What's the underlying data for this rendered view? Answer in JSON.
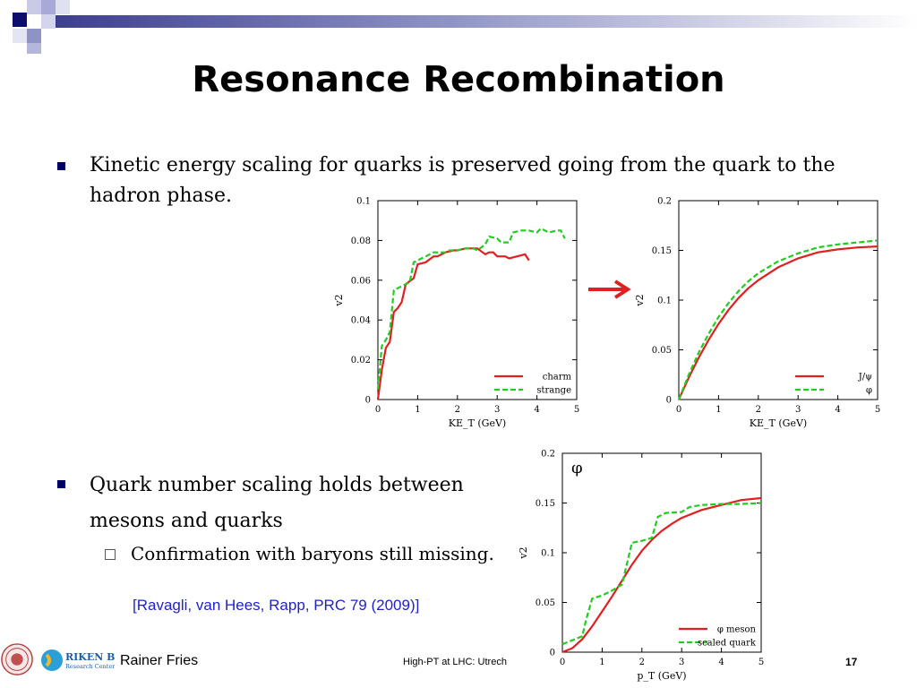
{
  "slide": {
    "title": "Resonance Recombination",
    "bullets": [
      {
        "line1": "Kinetic energy scaling for quarks is preserved going from the quark to the",
        "line2": "hadron phase."
      },
      {
        "line1": "Quark number scaling holds between",
        "line2": "mesons and quarks"
      }
    ],
    "sub_bullet": "Confirmation with baryons still missing.",
    "citation": "[Ravagli, van Hees, Rapp, PRC 79 (2009)]",
    "footer": {
      "author": "Rainer Fries",
      "conference": "High-PT at LHC: Utrech",
      "page": "17",
      "logo_text_1": "RIKEN BNL",
      "logo_text_2": "Research Center"
    },
    "arrow_color": "#e02020",
    "accent_color": "#000066"
  },
  "chart_data": [
    {
      "type": "line",
      "xlabel": "KE_T (GeV)",
      "ylabel": "v2",
      "xlim": [
        0,
        5
      ],
      "ylim": [
        0,
        0.1
      ],
      "xticks": [
        "0",
        "1",
        "2",
        "3",
        "4",
        "5"
      ],
      "yticks": [
        "0",
        "0.02",
        "0.04",
        "0.06",
        "0.08",
        "0.1"
      ],
      "legend_position": "bottom-right",
      "series": [
        {
          "name": "charm",
          "color": "#e02020",
          "dash": false,
          "x": [
            0,
            0.1,
            0.2,
            0.3,
            0.4,
            0.5,
            0.6,
            0.7,
            0.9,
            1.0,
            1.2,
            1.4,
            1.5,
            1.7,
            1.9,
            2.0,
            2.2,
            2.3,
            2.5,
            2.7,
            2.8,
            2.9,
            3.0,
            3.2,
            3.3,
            3.5,
            3.7,
            3.8
          ],
          "y": [
            0.0,
            0.015,
            0.026,
            0.029,
            0.044,
            0.046,
            0.049,
            0.058,
            0.061,
            0.068,
            0.069,
            0.072,
            0.072,
            0.074,
            0.075,
            0.075,
            0.076,
            0.076,
            0.076,
            0.073,
            0.074,
            0.074,
            0.072,
            0.072,
            0.071,
            0.072,
            0.073,
            0.07
          ]
        },
        {
          "name": "strange",
          "color": "#22cc22",
          "dash": true,
          "x": [
            0,
            0.1,
            0.2,
            0.3,
            0.4,
            0.5,
            0.6,
            0.8,
            0.9,
            1.1,
            1.2,
            1.4,
            1.5,
            1.7,
            1.8,
            2.0,
            2.2,
            2.4,
            2.5,
            2.7,
            2.8,
            3.0,
            3.1,
            3.3,
            3.4,
            3.6,
            3.8,
            4.0,
            4.1,
            4.3,
            4.5,
            4.6,
            4.7
          ],
          "y": [
            0.005,
            0.027,
            0.03,
            0.034,
            0.055,
            0.056,
            0.057,
            0.059,
            0.069,
            0.071,
            0.072,
            0.074,
            0.074,
            0.074,
            0.075,
            0.075,
            0.076,
            0.076,
            0.075,
            0.078,
            0.082,
            0.081,
            0.079,
            0.079,
            0.084,
            0.085,
            0.085,
            0.084,
            0.086,
            0.084,
            0.085,
            0.085,
            0.081
          ]
        }
      ]
    },
    {
      "type": "line",
      "xlabel": "KE_T (GeV)",
      "ylabel": "v2",
      "xlim": [
        0,
        5
      ],
      "ylim": [
        0,
        0.2
      ],
      "xticks": [
        "0",
        "1",
        "2",
        "3",
        "4",
        "5"
      ],
      "yticks": [
        "0",
        "0.05",
        "0.1",
        "0.15",
        "0.2"
      ],
      "legend_position": "bottom-right",
      "series": [
        {
          "name": "J/ψ",
          "color": "#e02020",
          "dash": false,
          "x": [
            0,
            0.25,
            0.5,
            0.75,
            1.0,
            1.25,
            1.5,
            1.75,
            2.0,
            2.5,
            3.0,
            3.5,
            4.0,
            4.5,
            5.0
          ],
          "y": [
            0,
            0.022,
            0.042,
            0.06,
            0.076,
            0.09,
            0.102,
            0.112,
            0.12,
            0.133,
            0.142,
            0.148,
            0.151,
            0.153,
            0.154
          ]
        },
        {
          "name": "φ",
          "color": "#22cc22",
          "dash": true,
          "x": [
            0,
            0.25,
            0.5,
            0.75,
            1.0,
            1.25,
            1.5,
            1.75,
            2.0,
            2.5,
            3.0,
            3.5,
            4.0,
            4.5,
            5.0
          ],
          "y": [
            0,
            0.025,
            0.047,
            0.066,
            0.083,
            0.097,
            0.109,
            0.119,
            0.127,
            0.139,
            0.147,
            0.153,
            0.156,
            0.158,
            0.16
          ]
        }
      ]
    },
    {
      "type": "line",
      "title": "φ",
      "xlabel": "p_T (GeV)",
      "ylabel": "v2",
      "xlim": [
        0,
        5
      ],
      "ylim": [
        0,
        0.2
      ],
      "xticks": [
        "0",
        "1",
        "2",
        "3",
        "4",
        "5"
      ],
      "yticks": [
        "0",
        "0.05",
        "0.1",
        "0.15",
        "0.2"
      ],
      "legend_position": "bottom-right",
      "series": [
        {
          "name": "φ meson",
          "color": "#e02020",
          "dash": false,
          "x": [
            0,
            0.25,
            0.5,
            0.75,
            1.0,
            1.25,
            1.5,
            1.75,
            2.0,
            2.25,
            2.5,
            2.75,
            3.0,
            3.5,
            4.0,
            4.5,
            5.0
          ],
          "y": [
            0,
            0.004,
            0.013,
            0.026,
            0.041,
            0.056,
            0.072,
            0.088,
            0.102,
            0.113,
            0.122,
            0.129,
            0.135,
            0.143,
            0.148,
            0.153,
            0.155
          ]
        },
        {
          "name": "scaled quark",
          "color": "#22cc22",
          "dash": true,
          "x": [
            0,
            0.25,
            0.5,
            0.6,
            0.75,
            1.0,
            1.25,
            1.5,
            1.6,
            1.75,
            2.0,
            2.25,
            2.4,
            2.6,
            3.0,
            3.2,
            3.5,
            4.0,
            4.5,
            5.0
          ],
          "y": [
            0.008,
            0.012,
            0.016,
            0.033,
            0.054,
            0.057,
            0.062,
            0.068,
            0.085,
            0.11,
            0.112,
            0.115,
            0.136,
            0.14,
            0.141,
            0.146,
            0.148,
            0.149,
            0.149,
            0.15
          ]
        }
      ]
    }
  ]
}
